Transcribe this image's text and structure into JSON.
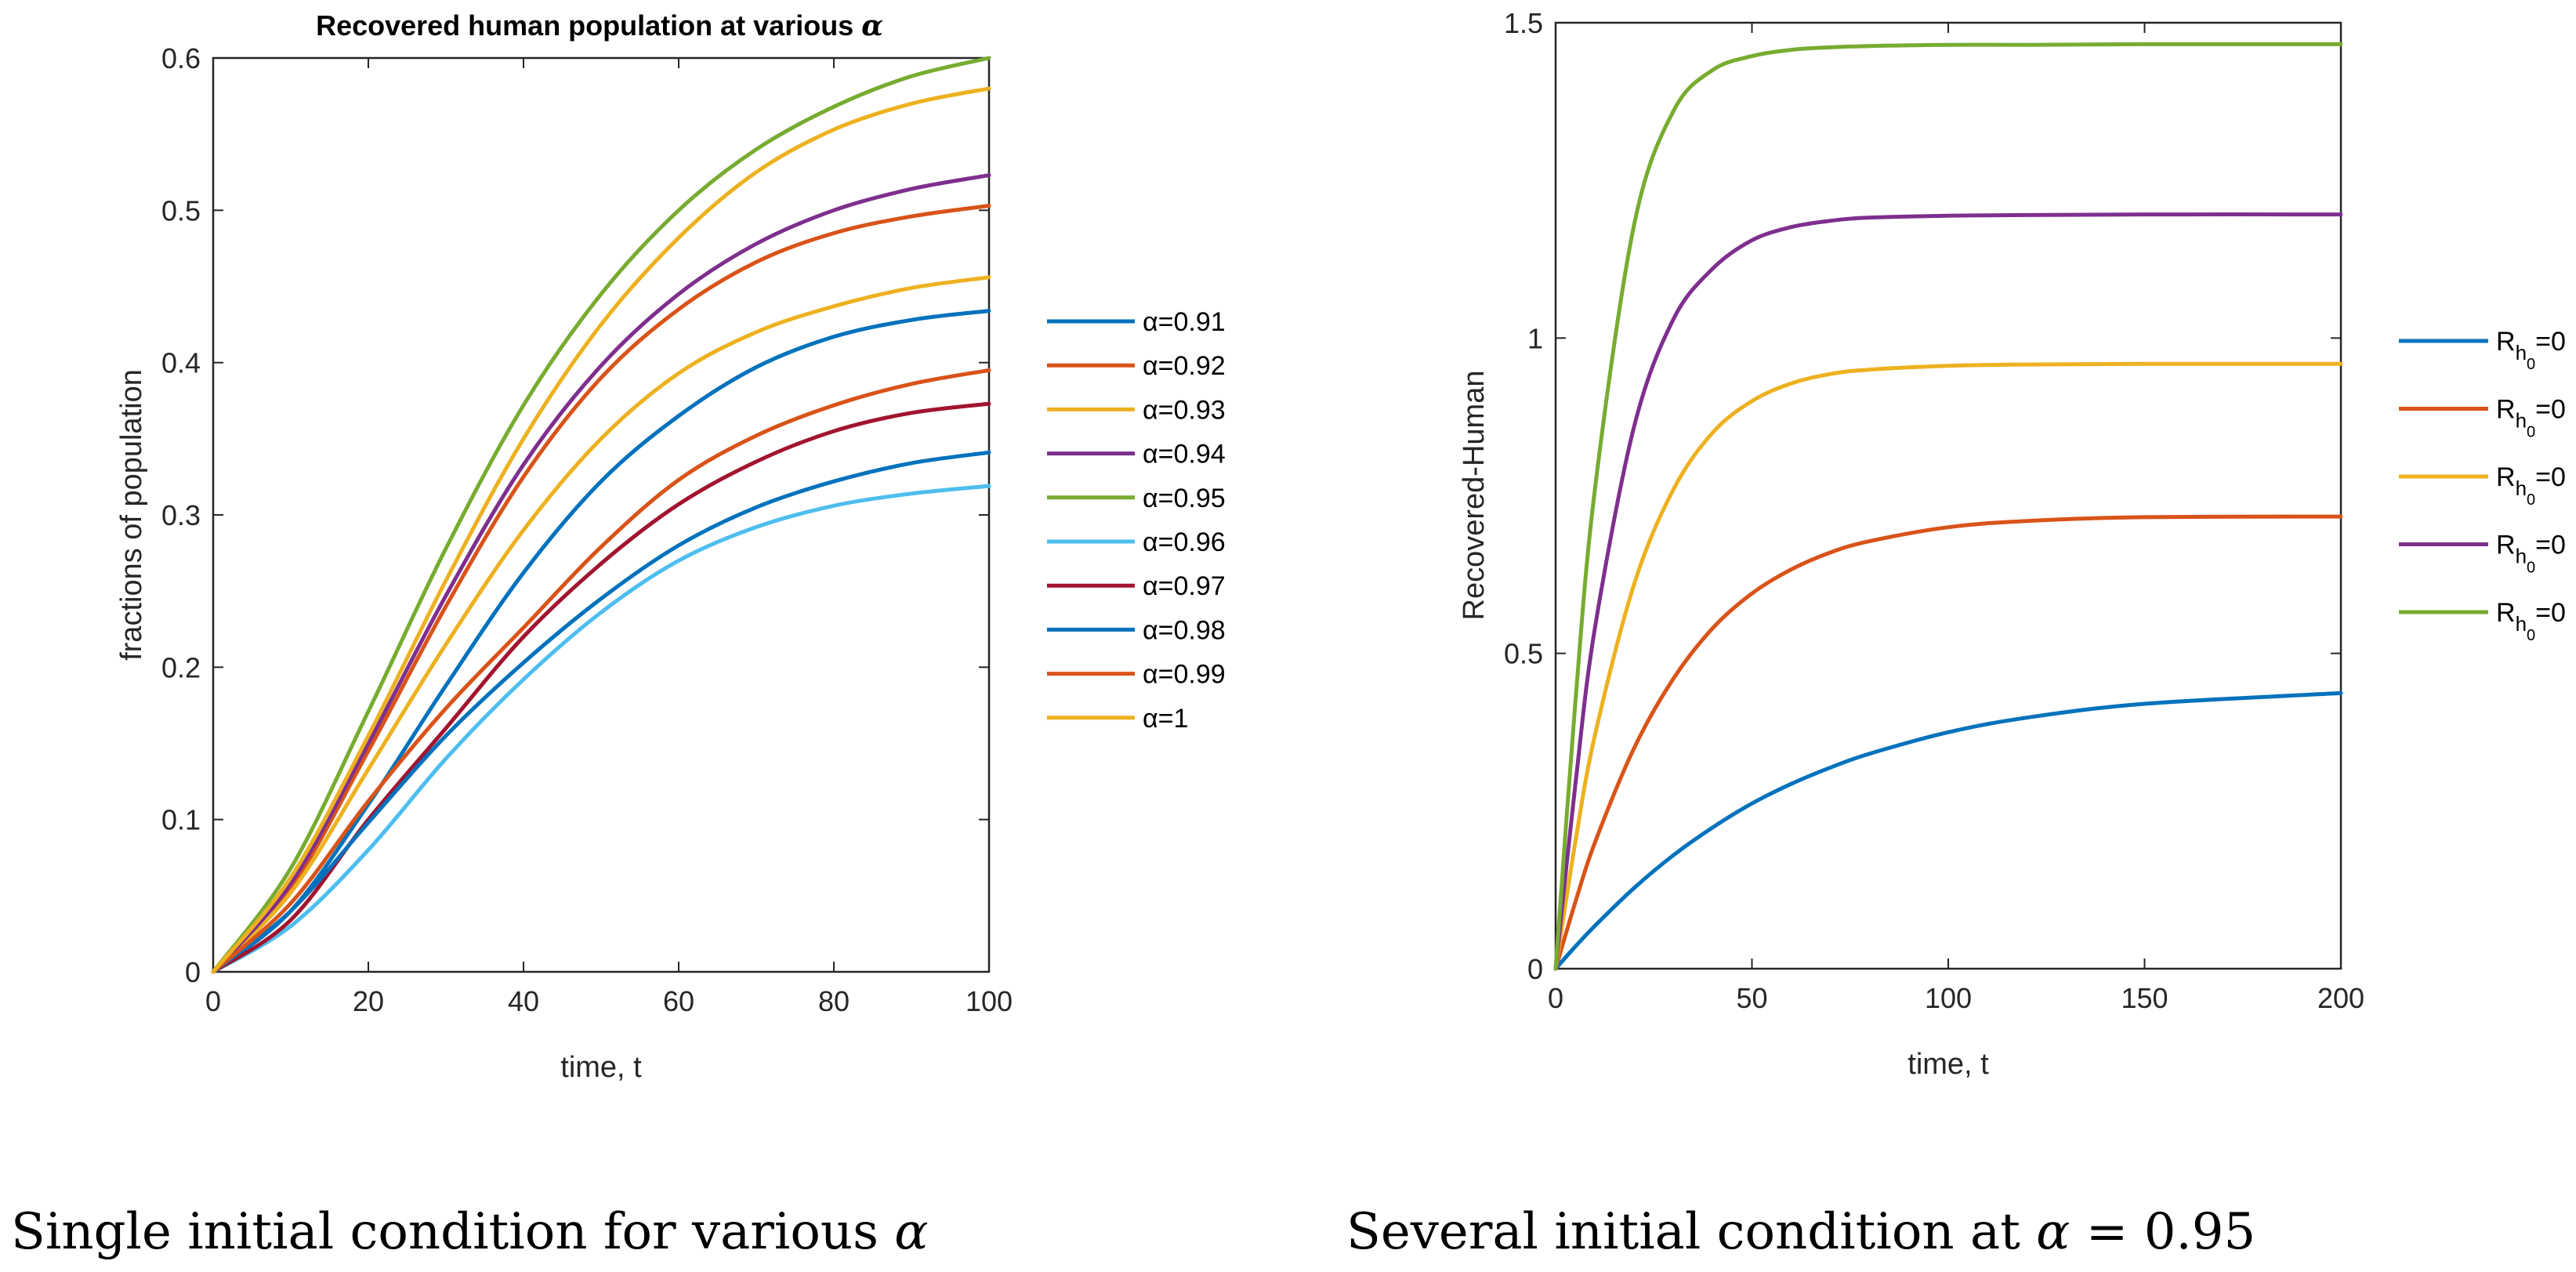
{
  "chart_data": [
    {
      "type": "line",
      "title_prefix": "Recovered human population at various ",
      "title_symbol": "α",
      "xlabel": "time, t",
      "ylabel": "fractions of population",
      "xlim": [
        0,
        100
      ],
      "ylim": [
        0,
        0.6
      ],
      "xticks": [
        0,
        20,
        40,
        60,
        80,
        100
      ],
      "xtick_labels": [
        "0",
        "20",
        "40",
        "60",
        "80",
        "100"
      ],
      "yticks": [
        0,
        0.1,
        0.2,
        0.3,
        0.4,
        0.5,
        0.6
      ],
      "ytick_labels": [
        "0",
        "0.1",
        "0.2",
        "0.3",
        "0.4",
        "0.5",
        "0.6"
      ],
      "legend_position": "right",
      "x": [
        0,
        10,
        20,
        30,
        40,
        50,
        60,
        70,
        80,
        90,
        100
      ],
      "series": [
        {
          "name": "α=0.91",
          "color": "#0072BD",
          "values": [
            0,
            0.04,
            0.11,
            0.188,
            0.262,
            0.322,
            0.365,
            0.397,
            0.417,
            0.428,
            0.434
          ]
        },
        {
          "name": "α=0.92",
          "color": "#D95319",
          "values": [
            0,
            0.055,
            0.145,
            0.24,
            0.325,
            0.39,
            0.435,
            0.466,
            0.485,
            0.496,
            0.503
          ]
        },
        {
          "name": "α=0.93",
          "color": "#EDB120",
          "values": [
            0,
            0.052,
            0.133,
            0.215,
            0.29,
            0.35,
            0.393,
            0.42,
            0.437,
            0.449,
            0.456
          ]
        },
        {
          "name": "α=0.94",
          "color": "#7E2F8E",
          "values": [
            0,
            0.058,
            0.15,
            0.247,
            0.333,
            0.398,
            0.445,
            0.478,
            0.5,
            0.514,
            0.523
          ]
        },
        {
          "name": "α=0.95",
          "color": "#77AC30",
          "values": [
            0,
            0.068,
            0.171,
            0.278,
            0.372,
            0.445,
            0.5,
            0.54,
            0.568,
            0.588,
            0.6
          ]
        },
        {
          "name": "α=0.96",
          "color": "#4DBEEE",
          "values": [
            0,
            0.03,
            0.08,
            0.14,
            0.192,
            0.236,
            0.27,
            0.292,
            0.306,
            0.314,
            0.319
          ]
        },
        {
          "name": "α=0.97",
          "color": "#A2142F",
          "values": [
            0,
            0.034,
            0.1,
            0.16,
            0.22,
            0.268,
            0.307,
            0.335,
            0.355,
            0.367,
            0.373
          ]
        },
        {
          "name": "α=0.98",
          "color": "#0072BD",
          "values": [
            0,
            0.04,
            0.098,
            0.155,
            0.203,
            0.245,
            0.28,
            0.305,
            0.322,
            0.334,
            0.341
          ]
        },
        {
          "name": "α=0.99",
          "color": "#D95319",
          "values": [
            0,
            0.045,
            0.112,
            0.173,
            0.226,
            0.279,
            0.323,
            0.352,
            0.372,
            0.386,
            0.395
          ]
        },
        {
          "name": "α=1",
          "color": "#EDB120",
          "values": [
            0,
            0.062,
            0.155,
            0.257,
            0.35,
            0.425,
            0.482,
            0.525,
            0.553,
            0.57,
            0.58
          ]
        }
      ],
      "caption_prefix": "Single initial condition for various ",
      "caption_symbol": "α"
    },
    {
      "type": "line",
      "xlabel": "time, t",
      "ylabel": "Recovered-Human",
      "xlim": [
        0,
        200
      ],
      "ylim": [
        0,
        1.5
      ],
      "xticks": [
        0,
        50,
        100,
        150,
        200
      ],
      "xtick_labels": [
        "0",
        "50",
        "100",
        "150",
        "200"
      ],
      "yticks": [
        0,
        0.5,
        1,
        1.5
      ],
      "ytick_labels": [
        "0",
        "0.5",
        "1",
        "1.5"
      ],
      "legend_position": "right",
      "x": [
        0,
        5,
        10,
        20,
        30,
        40,
        50,
        60,
        70,
        80,
        100,
        120,
        150,
        200
      ],
      "series": [
        {
          "name": "R",
          "sub1": "h",
          "sub2": "0",
          "suffix": "=0",
          "color": "#0072BD",
          "values": [
            0,
            0.035,
            0.068,
            0.128,
            0.18,
            0.224,
            0.262,
            0.293,
            0.319,
            0.341,
            0.375,
            0.398,
            0.42,
            0.437
          ]
        },
        {
          "name": "R",
          "sub1": "h",
          "sub2": "0",
          "suffix": "=0",
          "color": "#D95319",
          "values": [
            0,
            0.105,
            0.2,
            0.35,
            0.46,
            0.54,
            0.595,
            0.633,
            0.66,
            0.678,
            0.7,
            0.71,
            0.716,
            0.717
          ]
        },
        {
          "name": "R",
          "sub1": "h",
          "sub2": "0",
          "suffix": "=0",
          "color": "#EDB120",
          "values": [
            0,
            0.2,
            0.37,
            0.61,
            0.76,
            0.85,
            0.9,
            0.928,
            0.943,
            0.95,
            0.956,
            0.958,
            0.959,
            0.959
          ]
        },
        {
          "name": "R",
          "sub1": "h",
          "sub2": "0",
          "suffix": "=0",
          "color": "#7E2F8E",
          "values": [
            0,
            0.29,
            0.54,
            0.86,
            1.03,
            1.11,
            1.155,
            1.176,
            1.186,
            1.191,
            1.194,
            1.195,
            1.196,
            1.196
          ]
        },
        {
          "name": "R",
          "sub1": "h",
          "sub2": "0",
          "suffix": "=0",
          "color": "#77AC30",
          "values": [
            0,
            0.42,
            0.76,
            1.18,
            1.36,
            1.425,
            1.447,
            1.457,
            1.461,
            1.463,
            1.465,
            1.465,
            1.466,
            1.466
          ]
        }
      ],
      "caption_prefix": "Several initial condition at ",
      "caption_symbol": "α",
      "caption_suffix": " = 0.95"
    }
  ]
}
